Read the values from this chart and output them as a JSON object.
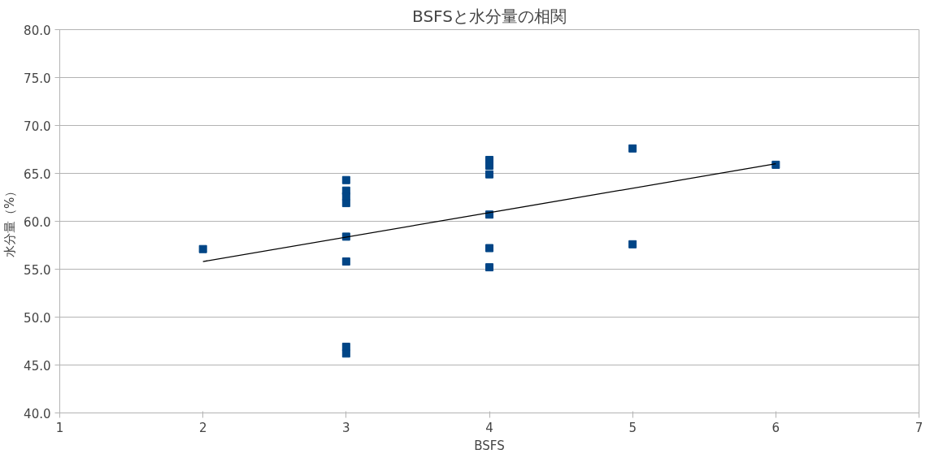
{
  "chart_data": {
    "type": "scatter",
    "title": "BSFSと水分量の相関",
    "xlabel": "BSFS",
    "ylabel": "水分量（%）",
    "xlim": [
      1,
      7
    ],
    "xticks": [
      1,
      2,
      3,
      4,
      5,
      6,
      7
    ],
    "ylim": [
      40,
      80
    ],
    "yticks": [
      {
        "value": 40,
        "label": "40.0"
      },
      {
        "value": 45,
        "label": "45.0"
      },
      {
        "value": 50,
        "label": "50.0"
      },
      {
        "value": 55,
        "label": "55.0"
      },
      {
        "value": 60,
        "label": "60.0"
      },
      {
        "value": 65,
        "label": "65.0"
      },
      {
        "value": 70,
        "label": "70.0"
      },
      {
        "value": 75,
        "label": "75.0"
      },
      {
        "value": 80,
        "label": "80.0"
      }
    ],
    "grid": "y",
    "series": [
      {
        "marker": "square",
        "color": "#004586",
        "x": [
          2,
          3,
          3,
          3,
          3,
          3,
          3,
          3,
          3,
          4,
          4,
          4,
          4,
          4,
          4,
          5,
          5,
          6
        ],
        "values": [
          57.1,
          64.3,
          63.2,
          62.6,
          61.9,
          58.4,
          55.8,
          46.9,
          46.2,
          66.4,
          65.8,
          64.9,
          60.7,
          57.2,
          55.2,
          67.6,
          57.6,
          65.9
        ]
      },
      {
        "type": "line",
        "color": "#000000",
        "x": [
          2,
          6
        ],
        "values": [
          55.8,
          66.0
        ]
      }
    ]
  }
}
